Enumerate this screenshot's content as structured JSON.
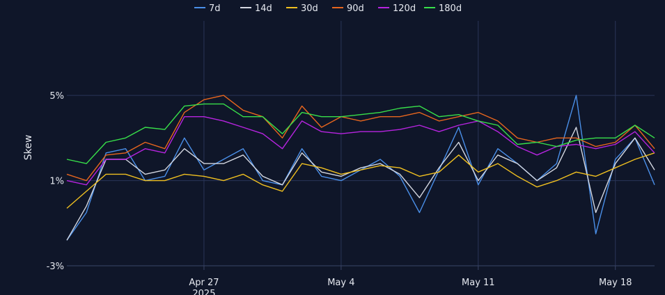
{
  "chart_data": {
    "type": "line",
    "ylabel": "Skew",
    "legend_position": "top",
    "grid": true,
    "y_ticks": [
      {
        "value": 5,
        "label": "5%"
      },
      {
        "value": 1,
        "label": "1%"
      },
      {
        "value": -3,
        "label": "-3%"
      }
    ],
    "ylim": [
      -3,
      8.5
    ],
    "x_ticks": [
      {
        "date": "2025-04-27",
        "label": "Apr 27",
        "sublabel": "2025"
      },
      {
        "date": "2025-05-04",
        "label": "May 4",
        "sublabel": ""
      },
      {
        "date": "2025-05-11",
        "label": "May 11",
        "sublabel": ""
      },
      {
        "date": "2025-05-18",
        "label": "May 18",
        "sublabel": ""
      }
    ],
    "xlim": [
      "2025-04-20",
      "2025-05-20"
    ],
    "x": [
      "2025-04-20",
      "2025-04-21",
      "2025-04-22",
      "2025-04-23",
      "2025-04-24",
      "2025-04-25",
      "2025-04-26",
      "2025-04-27",
      "2025-04-28",
      "2025-04-29",
      "2025-04-30",
      "2025-05-01",
      "2025-05-02",
      "2025-05-03",
      "2025-05-04",
      "2025-05-05",
      "2025-05-06",
      "2025-05-07",
      "2025-05-08",
      "2025-05-09",
      "2025-05-10",
      "2025-05-11",
      "2025-05-12",
      "2025-05-13",
      "2025-05-14",
      "2025-05-15",
      "2025-05-16",
      "2025-05-17",
      "2025-05-18",
      "2025-05-19",
      "2025-05-20"
    ],
    "series": [
      {
        "name": "7d",
        "color": "#4a8fe8",
        "values": [
          -1.8,
          -0.5,
          2.3,
          2.5,
          1.0,
          1.2,
          3.0,
          1.5,
          2.0,
          2.5,
          1.0,
          0.8,
          2.5,
          1.2,
          1.0,
          1.5,
          2.0,
          1.2,
          -0.5,
          1.5,
          3.5,
          0.8,
          2.5,
          1.8,
          1.0,
          1.8,
          5.0,
          -1.5,
          2.0,
          3.0,
          0.8
        ]
      },
      {
        "name": "14d",
        "color": "#d4d8e2",
        "values": [
          -1.8,
          -0.2,
          2.0,
          2.0,
          1.3,
          1.5,
          2.5,
          1.8,
          1.8,
          2.2,
          1.2,
          0.8,
          2.3,
          1.4,
          1.2,
          1.6,
          1.8,
          1.3,
          0.2,
          1.6,
          2.8,
          1.0,
          2.2,
          1.8,
          1.0,
          1.6,
          3.5,
          -0.5,
          1.8,
          3.0,
          1.5
        ]
      },
      {
        "name": "30d",
        "color": "#f0c020",
        "values": [
          -0.3,
          0.5,
          1.3,
          1.3,
          1.0,
          1.0,
          1.3,
          1.2,
          1.0,
          1.3,
          0.8,
          0.5,
          1.8,
          1.6,
          1.3,
          1.5,
          1.7,
          1.6,
          1.2,
          1.4,
          2.2,
          1.4,
          1.8,
          1.2,
          0.7,
          1.0,
          1.4,
          1.2,
          1.6,
          2.0,
          2.3
        ]
      },
      {
        "name": "90d",
        "color": "#e8661e",
        "values": [
          1.3,
          1.0,
          2.2,
          2.3,
          2.8,
          2.5,
          4.2,
          4.8,
          5.0,
          4.3,
          4.0,
          3.0,
          4.5,
          3.5,
          4.0,
          3.8,
          4.0,
          4.0,
          4.2,
          3.8,
          4.0,
          4.2,
          3.8,
          3.0,
          2.8,
          3.0,
          3.0,
          2.6,
          2.8,
          3.6,
          2.5
        ]
      },
      {
        "name": "120d",
        "color": "#b724e0",
        "values": [
          1.0,
          0.8,
          2.0,
          2.0,
          2.5,
          2.3,
          4.0,
          4.0,
          3.8,
          3.5,
          3.2,
          2.5,
          3.8,
          3.3,
          3.2,
          3.3,
          3.3,
          3.4,
          3.6,
          3.3,
          3.6,
          3.8,
          3.3,
          2.6,
          2.2,
          2.6,
          2.7,
          2.5,
          2.7,
          3.3,
          2.3
        ]
      },
      {
        "name": "180d",
        "color": "#38e04a",
        "values": [
          2.0,
          1.8,
          2.8,
          3.0,
          3.5,
          3.4,
          4.5,
          4.6,
          4.6,
          4.0,
          4.0,
          3.2,
          4.2,
          4.0,
          4.0,
          4.1,
          4.2,
          4.4,
          4.5,
          4.0,
          4.1,
          3.8,
          3.6,
          2.7,
          2.8,
          2.6,
          2.9,
          3.0,
          3.0,
          3.6,
          3.0
        ]
      }
    ]
  }
}
